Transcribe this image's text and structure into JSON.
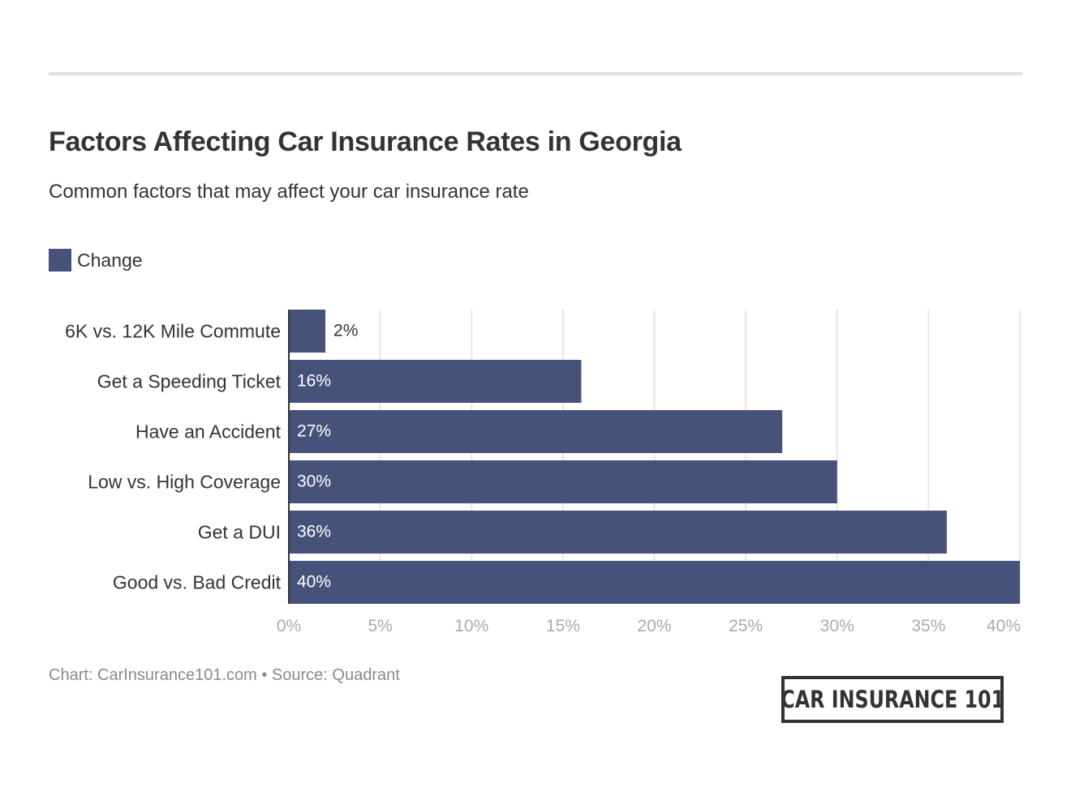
{
  "header": {
    "title": "Factors Affecting Car Insurance Rates in Georgia",
    "subtitle": "Common factors that may affect your car insurance rate"
  },
  "legend": {
    "label": "Change",
    "color": "#47527a"
  },
  "footer": {
    "credit": "Chart: CarInsurance101.com • Source: Quadrant"
  },
  "logo": {
    "text": "CAR INSURANCE 101"
  },
  "chart_data": {
    "type": "bar",
    "orientation": "horizontal",
    "title": "Factors Affecting Car Insurance Rates in Georgia",
    "subtitle": "Common factors that may affect your car insurance rate",
    "categories": [
      "6K vs. 12K Mile Commute",
      "Get a Speeding Ticket",
      "Have an Accident",
      "Low vs. High Coverage",
      "Get a DUI",
      "Good vs. Bad Credit"
    ],
    "series": [
      {
        "name": "Change",
        "values": [
          2,
          16,
          27,
          30,
          36,
          40
        ],
        "color": "#47527a"
      }
    ],
    "data_labels": [
      "2%",
      "16%",
      "27%",
      "30%",
      "36%",
      "40%"
    ],
    "xlabel": "",
    "ylabel": "",
    "xlim": [
      0,
      40
    ],
    "x_ticks": [
      0,
      5,
      10,
      15,
      20,
      25,
      30,
      35,
      40
    ],
    "x_tick_labels": [
      "0%",
      "5%",
      "10%",
      "15%",
      "20%",
      "25%",
      "30%",
      "35%",
      "40%"
    ],
    "grid": true,
    "legend_position": "top-left",
    "colors": {
      "bar": "#47527a",
      "grid": "#e6e6e6",
      "axis": "#333333",
      "tick_label": "#aaaaaa",
      "category_label": "#333333",
      "label_inside": "#ffffff",
      "label_outside": "#333333"
    }
  }
}
